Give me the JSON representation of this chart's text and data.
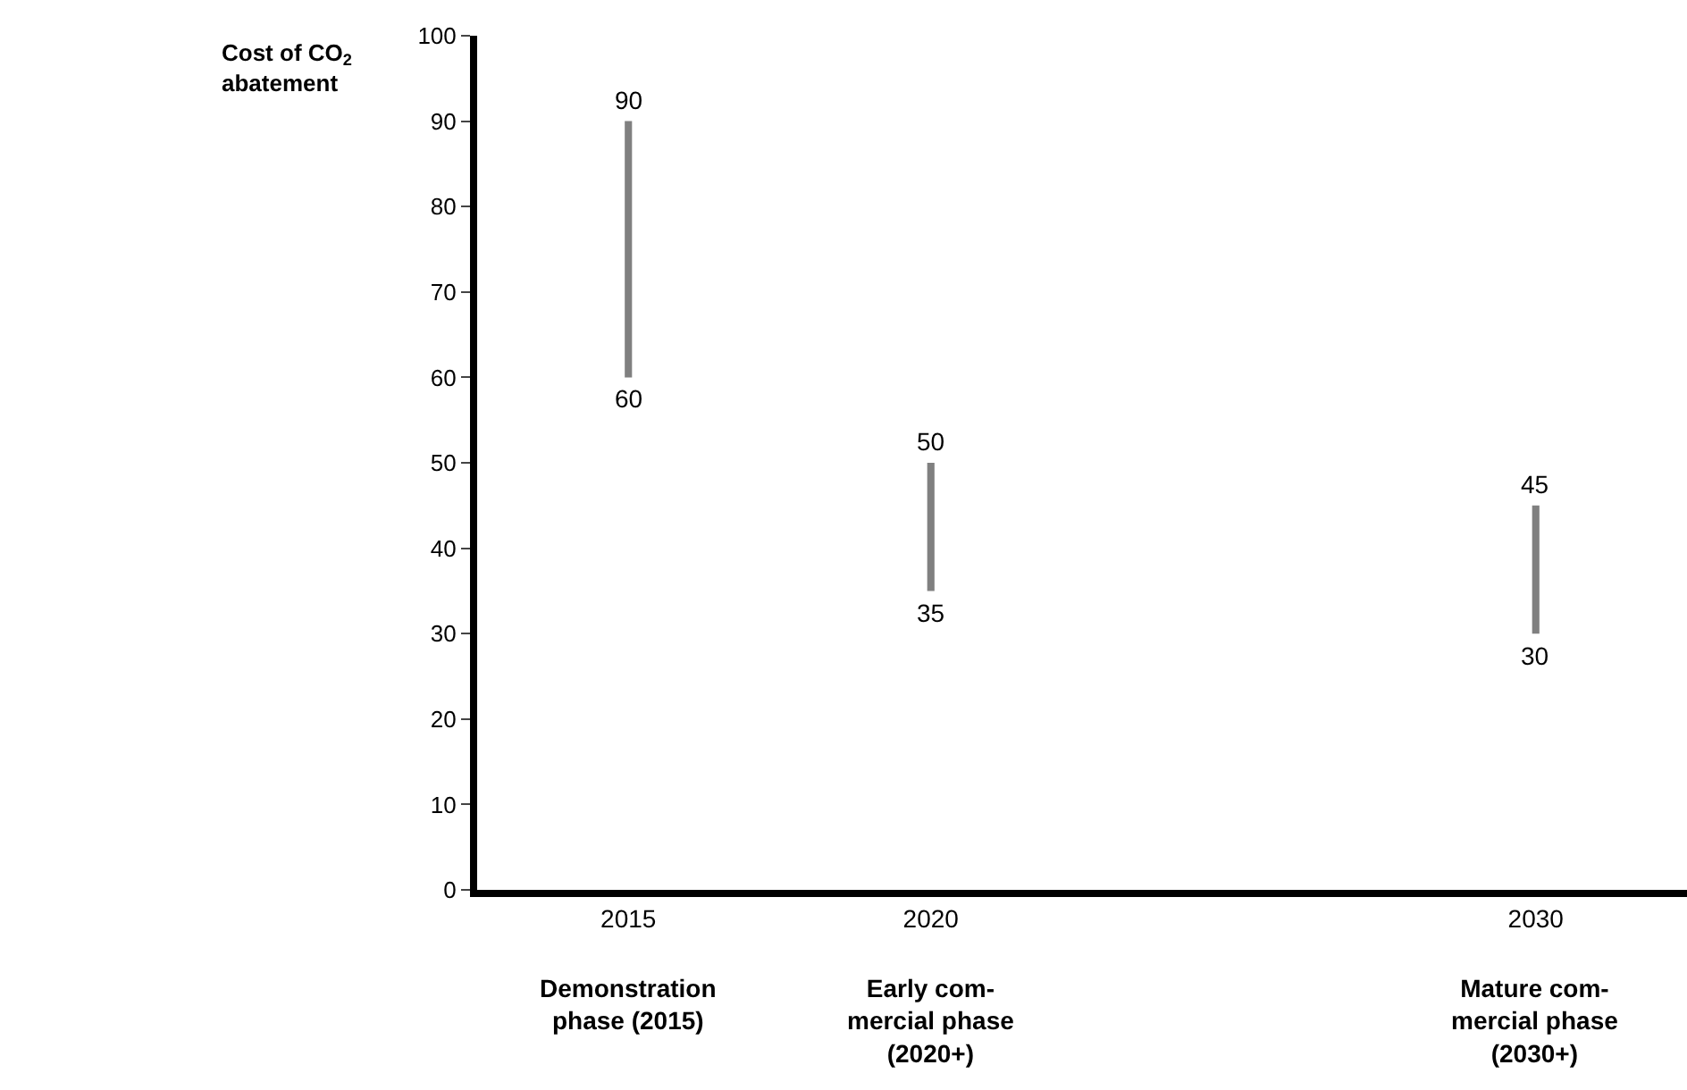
{
  "chart_data": {
    "type": "bar",
    "ylabel": "Cost of CO$_{2}$\nabatement",
    "x": [
      2015,
      2020,
      2030
    ],
    "base": [
      60,
      35,
      30
    ],
    "values": [
      30,
      15,
      15
    ],
    "color": "#808080",
    "xlim": [
      2012.5,
      2032.5
    ],
    "xticks": [
      2015,
      2020,
      2030
    ],
    "ylim": [
      0,
      100
    ],
    "yticks": [
      0,
      10,
      20,
      30,
      40,
      50,
      60,
      70,
      80,
      90,
      100
    ],
    "annotations": [
      {
        "text": "90",
        "x": 2015,
        "y": 90
      },
      {
        "text": "60",
        "x": 2015,
        "y": 60
      },
      {
        "text": "50",
        "x": 2020,
        "y": 50
      },
      {
        "text": "35",
        "x": 2020,
        "y": 35
      },
      {
        "text": "45",
        "x": 2030,
        "y": 45
      },
      {
        "text": "30",
        "x": 2030,
        "y": 30
      },
      "Demonstration\nphase (2015)",
      "Early com-\nmercial phase\n(2020+)",
      "Mature com-\nmercial phase\n(2030+)"
    ],
    "legend": false
  }
}
